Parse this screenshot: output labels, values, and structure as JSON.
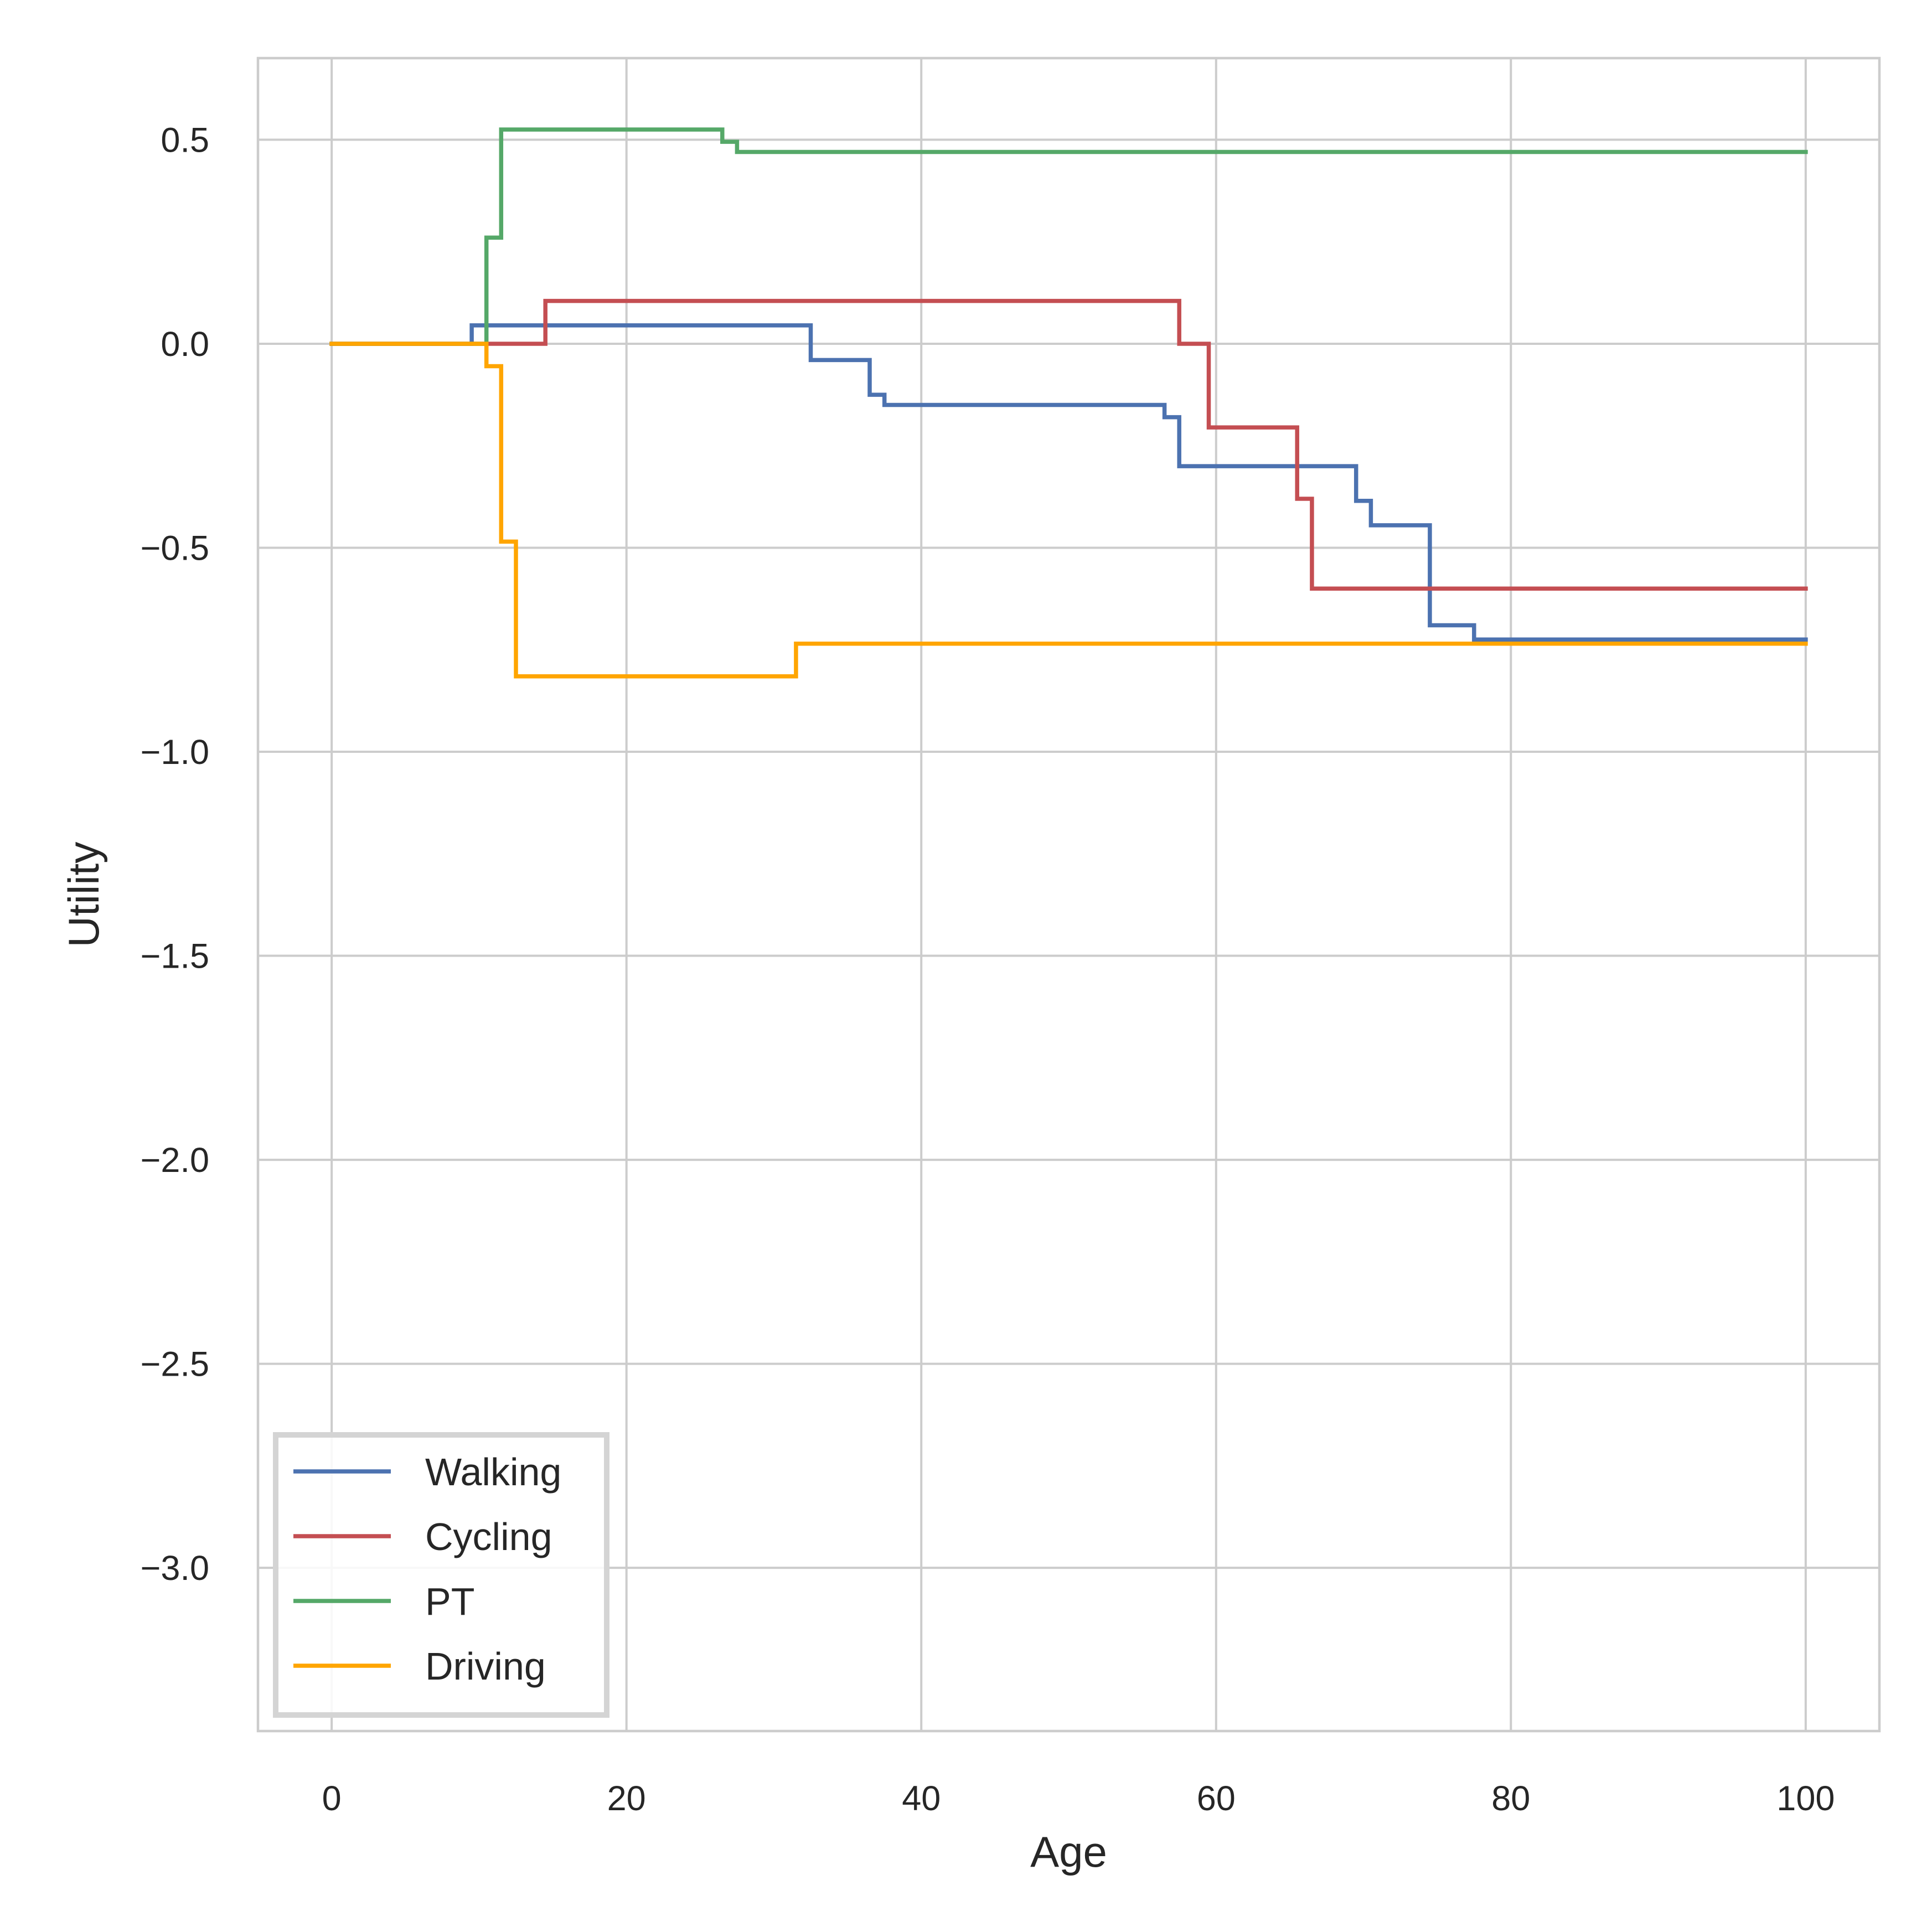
{
  "chart_data": {
    "type": "line",
    "title": "",
    "xlabel": "Age",
    "ylabel": "Utility",
    "xlim": [
      -5,
      105
    ],
    "ylim": [
      -3.4,
      0.7
    ],
    "xticks": [
      0,
      20,
      40,
      60,
      80,
      100
    ],
    "xtick_labels": [
      "0",
      "20",
      "40",
      "60",
      "80",
      "100"
    ],
    "yticks": [
      0.5,
      0.0,
      -0.5,
      -1.0,
      -1.5,
      -2.0,
      -2.5,
      -3.0
    ],
    "ytick_labels": [
      "0.5",
      "0.0",
      "−0.5",
      "−1.0",
      "−1.5",
      "−2.0",
      "−2.5",
      "−3.0"
    ],
    "grid": true,
    "legend_position": "lower-left",
    "step": "post",
    "series": [
      {
        "name": "Walking",
        "color": "#4c72b0",
        "x": [
          0,
          9.5,
          32.5,
          36.5,
          37.5,
          56.5,
          57.5,
          69.5,
          70.5,
          74.5,
          77.5,
          100
        ],
        "y": [
          0.0,
          0.045,
          -0.04,
          -0.125,
          -0.15,
          -0.18,
          -0.3,
          -0.385,
          -0.445,
          -0.69,
          -0.725,
          -0.725
        ]
      },
      {
        "name": "Cycling",
        "color": "#c44e52",
        "x": [
          0,
          14.5,
          57.5,
          59.5,
          65.5,
          66.5,
          100
        ],
        "y": [
          0.0,
          0.105,
          0.0,
          -0.205,
          -0.38,
          -0.6,
          -0.6
        ]
      },
      {
        "name": "PT",
        "color": "#55a868",
        "x": [
          0,
          10.5,
          11.5,
          26.5,
          27.5,
          100
        ],
        "y": [
          0.0,
          0.26,
          0.525,
          0.495,
          0.47,
          0.47
        ]
      },
      {
        "name": "Driving",
        "color": "#ffa500",
        "x": [
          0,
          10.5,
          11.5,
          12.5,
          31.5,
          100
        ],
        "y": [
          0.0,
          -0.055,
          -0.485,
          -0.815,
          -0.735,
          -0.735
        ]
      }
    ]
  }
}
